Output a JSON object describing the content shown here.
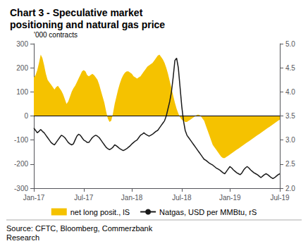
{
  "chart_data": {
    "type": "line",
    "title": "Chart 3 - Speculative market\npositioning and natural gas price",
    "ylabel": "'000 contracts",
    "annotations": [
      "Source: CFTC, Bloomberg, Commerzbank\nResearch"
    ],
    "categories": [
      "Jan-17",
      null,
      null,
      null,
      null,
      null,
      null,
      null,
      null,
      null,
      null,
      null,
      null,
      null,
      null,
      null,
      null,
      null,
      null,
      null,
      null,
      null,
      null,
      null,
      null,
      null,
      null,
      null,
      null,
      "Jul-17",
      null,
      null,
      null,
      null,
      null,
      null,
      null,
      null,
      null,
      null,
      null,
      null,
      null,
      null,
      null,
      null,
      null,
      null,
      null,
      null,
      null,
      null,
      null,
      null,
      null,
      null,
      null,
      "Jan-18",
      null,
      null,
      null,
      null,
      null,
      null,
      null,
      null,
      null,
      null,
      null,
      null,
      null,
      null,
      null,
      null,
      null,
      null,
      null,
      null,
      null,
      null,
      null,
      null,
      null,
      null,
      null,
      null,
      "Jul-18",
      null,
      null,
      null,
      null,
      null,
      null,
      null,
      null,
      null,
      null,
      null,
      null,
      null,
      null,
      null,
      null,
      null,
      null,
      null,
      null,
      null,
      null,
      null,
      null,
      null,
      null,
      null,
      "Jan-19",
      null,
      null,
      null,
      null,
      null,
      null,
      null,
      null,
      null,
      null,
      null,
      null,
      null,
      null,
      null,
      null,
      null,
      null,
      null,
      null,
      null,
      null,
      null,
      null,
      null,
      null,
      null,
      null,
      "Jul-19"
    ],
    "series": [
      {
        "name": "net long posit., lS",
        "type": "area",
        "color": "#F5C200",
        "values": [
          160,
          170,
          190,
          220,
          255,
          240,
          210,
          175,
          150,
          140,
          130,
          120,
          110,
          120,
          125,
          115,
          105,
          90,
          70,
          50,
          60,
          80,
          100,
          115,
          125,
          140,
          155,
          170,
          185,
          190,
          185,
          170,
          165,
          170,
          175,
          170,
          160,
          150,
          130,
          105,
          80,
          55,
          20,
          -10,
          -25,
          -20,
          10,
          50,
          80,
          110,
          135,
          155,
          170,
          180,
          185,
          185,
          180,
          175,
          165,
          160,
          155,
          160,
          165,
          175,
          185,
          195,
          205,
          210,
          215,
          220,
          230,
          240,
          250,
          255,
          245,
          235,
          220,
          200,
          175,
          145,
          115,
          85,
          55,
          30,
          10,
          -5,
          -15,
          -20,
          -25,
          -25,
          -20,
          -15,
          -10,
          -5,
          0,
          5,
          5,
          0,
          -10,
          -20,
          -40,
          -60,
          -80,
          -100,
          -120,
          -130,
          -140,
          -150,
          -160,
          -170,
          -175,
          -175,
          -170,
          -165,
          -160,
          -155,
          -150,
          -145,
          -140,
          -135,
          -130,
          -125,
          -120,
          -115,
          -110,
          -105,
          -100,
          -95,
          -90,
          -85,
          -80,
          -75,
          -70,
          -65,
          -60,
          -55,
          -50,
          -45,
          -40,
          -35,
          -30,
          -25,
          -20,
          -15
        ]
      },
      {
        "name": "Natgas, USD per MMBtu, rS",
        "type": "line",
        "color": "#1a1a1a",
        "axis": "y2",
        "values": [
          3.25,
          3.2,
          3.15,
          3.18,
          3.22,
          3.18,
          3.15,
          3.1,
          3.05,
          3.0,
          2.95,
          2.92,
          2.9,
          2.95,
          3.0,
          3.05,
          3.1,
          3.08,
          3.05,
          3.0,
          2.95,
          2.92,
          2.9,
          2.92,
          3.0,
          3.08,
          3.12,
          3.1,
          3.05,
          3.0,
          2.98,
          2.95,
          2.95,
          3.0,
          3.05,
          3.08,
          3.1,
          3.08,
          3.05,
          3.0,
          2.95,
          2.9,
          2.85,
          2.82,
          2.8,
          2.82,
          2.85,
          2.9,
          2.88,
          2.85,
          2.82,
          2.8,
          2.78,
          2.8,
          2.82,
          2.85,
          2.88,
          2.92,
          2.95,
          2.98,
          3.0,
          3.05,
          3.1,
          3.12,
          3.15,
          3.12,
          3.1,
          3.08,
          3.1,
          3.12,
          3.15,
          3.18,
          3.2,
          3.25,
          3.3,
          3.35,
          3.4,
          3.5,
          3.65,
          3.8,
          4.0,
          4.3,
          4.65,
          4.7,
          4.5,
          4.1,
          3.7,
          3.4,
          3.2,
          3.1,
          3.05,
          3.0,
          2.95,
          2.9,
          2.85,
          2.8,
          2.75,
          2.7,
          2.65,
          2.6,
          2.58,
          2.55,
          2.52,
          2.5,
          2.48,
          2.45,
          2.42,
          2.4,
          2.38,
          2.35,
          2.32,
          2.3,
          2.35,
          2.4,
          2.45,
          2.42,
          2.38,
          2.35,
          2.32,
          2.3,
          2.28,
          2.32,
          2.38,
          2.42,
          2.45,
          2.42,
          2.38,
          2.35,
          2.32,
          2.3,
          2.28,
          2.25,
          2.22,
          2.25,
          2.28,
          2.3,
          2.28,
          2.25,
          2.22,
          2.2,
          2.22,
          2.25,
          2.28,
          2.3
        ]
      }
    ],
    "ylim": [
      -300,
      300
    ],
    "yticks": [
      -300,
      -200,
      -100,
      0,
      100,
      200,
      300
    ],
    "y2lim": [
      2.0,
      5.0
    ],
    "y2ticks": [
      {
        "value": 2.0,
        "label": "2.0"
      },
      2.5,
      {
        "value": 3.0,
        "label": "3.0"
      },
      3.5,
      {
        "value": 4.0,
        "label": "4.0"
      },
      4.5,
      {
        "value": 5.0,
        "label": "5.0"
      }
    ],
    "grid": false,
    "legend": "bottom"
  }
}
